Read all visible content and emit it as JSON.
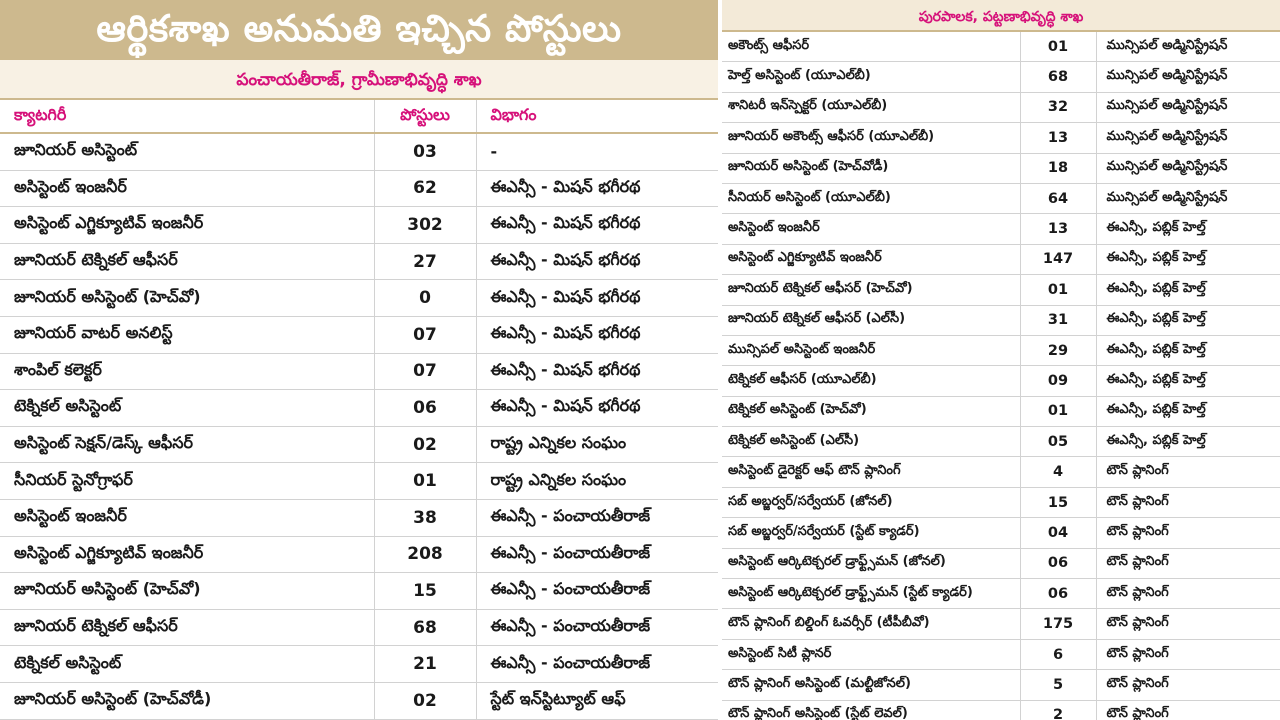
{
  "left": {
    "title": "ఆర్థికశాఖ అనుమతి ఇచ్చిన పోస్టులు",
    "subheading": "పంచాయతీరాజ్, గ్రామీణాభివృద్ధి శాఖ",
    "headers": {
      "category": "క్యాటగిరీ",
      "posts": "పోస్టులు",
      "department": "విభాగం"
    },
    "rows": [
      {
        "category": "జూనియర్ అసిస్టెంట్",
        "posts": "03",
        "department": "-"
      },
      {
        "category": "అసిస్టెంట్ ఇంజనీర్",
        "posts": "62",
        "department": "ఈఎన్సీ - మిషన్ భగీరథ"
      },
      {
        "category": "అసిస్టెంట్ ఎగ్జిక్యూటివ్ ఇంజనీర్",
        "posts": "302",
        "department": "ఈఎన్సీ - మిషన్ భగీరథ"
      },
      {
        "category": "జూనియర్ టెక్నికల్ ఆఫీసర్",
        "posts": "27",
        "department": "ఈఎన్సీ - మిషన్ భగీరథ"
      },
      {
        "category": "జూనియర్ అసిస్టెంట్ (హెచ్‌వో)",
        "posts": "0",
        "department": "ఈఎన్సీ - మిషన్ భగీరథ"
      },
      {
        "category": "జూనియర్ వాటర్ అనలిస్ట్",
        "posts": "07",
        "department": "ఈఎన్సీ - మిషన్ భగీరథ"
      },
      {
        "category": "శాంపిల్ కలెక్టర్",
        "posts": "07",
        "department": "ఈఎన్సీ - మిషన్ భగీరథ"
      },
      {
        "category": "టెక్నికల్ అసిస్టెంట్",
        "posts": "06",
        "department": "ఈఎన్సీ - మిషన్ భగీరథ"
      },
      {
        "category": "అసిస్టెంట్ సెక్షన్/డెస్క్ ఆఫీసర్",
        "posts": "02",
        "department": "రాష్ట్ర ఎన్నికల సంఘం"
      },
      {
        "category": "సీనియర్ స్టెనోగ్రాఫర్",
        "posts": "01",
        "department": "రాష్ట్ర ఎన్నికల సంఘం"
      },
      {
        "category": "అసిస్టెంట్ ఇంజనీర్",
        "posts": "38",
        "department": "ఈఎన్సీ - పంచాయతీరాజ్"
      },
      {
        "category": "అసిస్టెంట్ ఎగ్జిక్యూటివ్ ఇంజనీర్",
        "posts": "208",
        "department": "ఈఎన్సీ - పంచాయతీరాజ్"
      },
      {
        "category": "జూనియర్ అసిస్టెంట్ (హెచ్‌వో)",
        "posts": "15",
        "department": "ఈఎన్సీ - పంచాయతీరాజ్"
      },
      {
        "category": "జూనియర్ టెక్నికల్ ఆఫీసర్",
        "posts": "68",
        "department": "ఈఎన్సీ - పంచాయతీరాజ్"
      },
      {
        "category": "టెక్నికల్ అసిస్టెంట్",
        "posts": "21",
        "department": "ఈఎన్సీ - పంచాయతీరాజ్"
      },
      {
        "category": "జూనియర్ అసిస్టెంట్ (హెచ్‌వోడీ)",
        "posts": "02",
        "department": "స్టేట్ ఇన్‌స్టిట్యూట్ ఆఫ్"
      }
    ]
  },
  "right": {
    "subheading": "పురపాలక, పట్టణాభివృద్ధి శాఖ",
    "rows": [
      {
        "category": "అకౌంట్స్ ఆఫీసర్",
        "posts": "01",
        "department": "మున్సిపల్ అడ్మినిస్ట్రేషన్"
      },
      {
        "category": "హెల్త్ అసిస్టెంట్ (యూఎల్‌బీ)",
        "posts": "68",
        "department": "మున్సిపల్ అడ్మినిస్ట్రేషన్"
      },
      {
        "category": "శానిటరీ ఇన్‌స్పెక్టర్ (యూఎల్‌బీ)",
        "posts": "32",
        "department": "మున్సిపల్ అడ్మినిస్ట్రేషన్"
      },
      {
        "category": "జూనియర్ అకౌంట్స్ ఆఫీసర్ (యూఎల్‌బీ)",
        "posts": "13",
        "department": "మున్సిపల్ అడ్మినిస్ట్రేషన్"
      },
      {
        "category": "జూనియర్ అసిస్టెంట్ (హెచ్‌వోడీ)",
        "posts": "18",
        "department": "మున్సిపల్ అడ్మినిస్ట్రేషన్"
      },
      {
        "category": "సీనియర్ అసిస్టెంట్ (యూఎల్‌బీ)",
        "posts": "64",
        "department": "మున్సిపల్ అడ్మినిస్ట్రేషన్"
      },
      {
        "category": "అసిస్టెంట్ ఇంజనీర్",
        "posts": "13",
        "department": "ఈఎన్సీ, పబ్లిక్ హెల్త్"
      },
      {
        "category": "అసిస్టెంట్ ఎగ్జిక్యూటివ్ ఇంజనీర్",
        "posts": "147",
        "department": "ఈఎన్సీ, పబ్లిక్ హెల్త్"
      },
      {
        "category": "జూనియర్ టెక్నికల్ ఆఫీసర్ (హెచ్‌వో)",
        "posts": "01",
        "department": "ఈఎన్సీ, పబ్లిక్ హెల్త్"
      },
      {
        "category": "జూనియర్ టెక్నికల్ ఆఫీసర్ (ఎల్‌సీ)",
        "posts": "31",
        "department": "ఈఎన్సీ, పబ్లిక్ హెల్త్"
      },
      {
        "category": "మున్సిపల్ అసిస్టెంట్ ఇంజనీర్",
        "posts": "29",
        "department": "ఈఎన్సీ, పబ్లిక్ హెల్త్"
      },
      {
        "category": "టెక్నికల్ ఆఫీసర్ (యూఎల్‌బీ)",
        "posts": "09",
        "department": "ఈఎన్సీ, పబ్లిక్ హెల్త్"
      },
      {
        "category": "టెక్నికల్ అసిస్టెంట్ (హెచ్‌వో)",
        "posts": "01",
        "department": "ఈఎన్సీ, పబ్లిక్ హెల్త్"
      },
      {
        "category": "టెక్నికల్ అసిస్టెంట్ (ఎల్‌సీ)",
        "posts": "05",
        "department": "ఈఎన్సీ, పబ్లిక్ హెల్త్"
      },
      {
        "category": "అసిస్టెంట్ డైరెక్టర్ ఆఫ్ టౌన్ ప్లానింగ్",
        "posts": "4",
        "department": "టౌన్ ప్లానింగ్"
      },
      {
        "category": "సబ్ అబ్జర్వర్/సర్వేయర్ (జోనల్)",
        "posts": "15",
        "department": "టౌన్ ప్లానింగ్"
      },
      {
        "category": "సబ్ అబ్జర్వర్/సర్వేయర్ (స్టేట్ క్యాడర్)",
        "posts": "04",
        "department": "టౌన్ ప్లానింగ్"
      },
      {
        "category": "అసిస్టెంట్ ఆర్కిటెక్చరల్ డ్రాఫ్ట్స్‌మన్ (జోనల్)",
        "posts": "06",
        "department": "టౌన్ ప్లానింగ్"
      },
      {
        "category": "అసిస్టెంట్ ఆర్కిటెక్చరల్ డ్రాఫ్ట్స్‌మన్ (స్టేట్ క్యాడర్)",
        "posts": "06",
        "department": "టౌన్ ప్లానింగ్"
      },
      {
        "category": "టౌన్ ప్లానింగ్ బిల్డింగ్ ఓవర్సీర్ (టీపీబీవో)",
        "posts": "175",
        "department": "టౌన్ ప్లానింగ్"
      },
      {
        "category": "అసిస్టెంట్ సిటీ ప్లానర్",
        "posts": "6",
        "department": "టౌన్ ప్లానింగ్"
      },
      {
        "category": "టౌన్ ప్లానింగ్ అసిస్టెంట్ (మల్టీజోనల్)",
        "posts": "5",
        "department": "టౌన్ ప్లానింగ్"
      },
      {
        "category": "టౌన్ ప్లానింగ్ అసిస్టెంట్ (స్టేట్ లెవల్)",
        "posts": "2",
        "department": "టౌన్ ప్లానింగ్"
      }
    ]
  }
}
